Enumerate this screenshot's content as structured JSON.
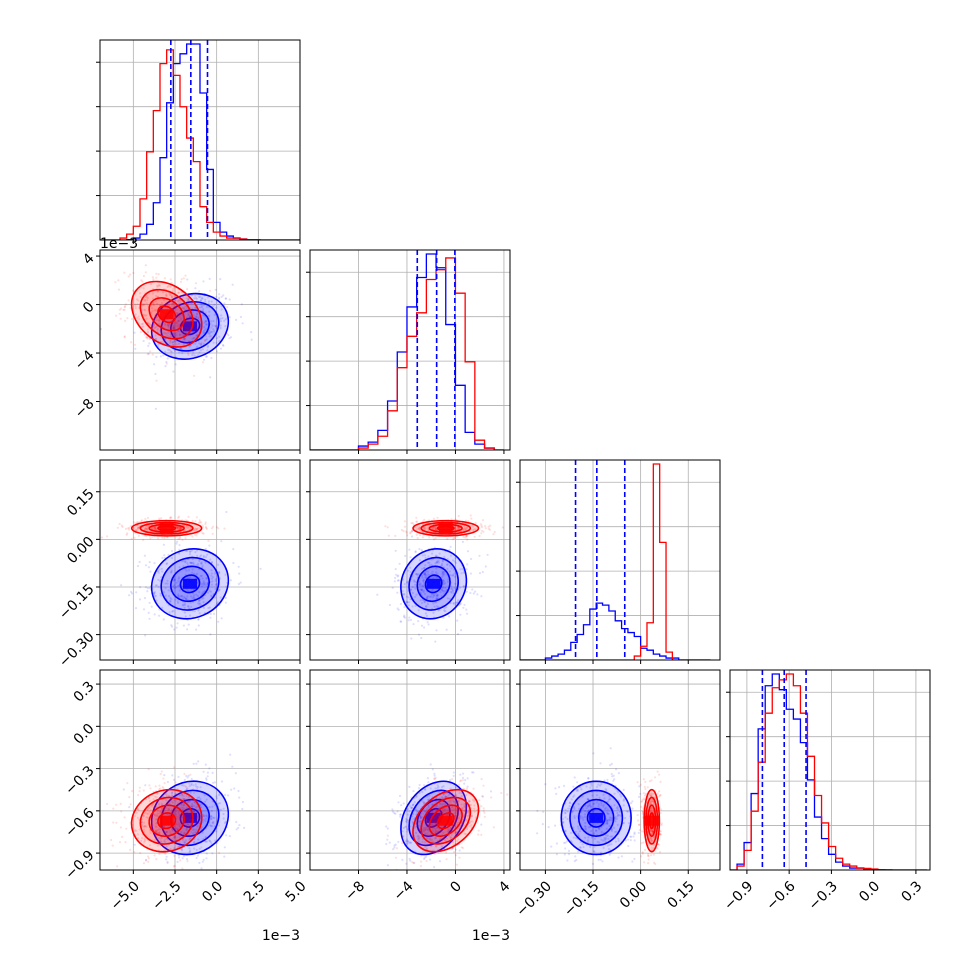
{
  "chart_data": {
    "type": "corner",
    "n_params": 4,
    "grid": true,
    "series": [
      {
        "name": "",
        "color": "#0000ff"
      },
      {
        "name": "",
        "color": "#ff0000"
      }
    ],
    "params": [
      {
        "range": [
          -7.0,
          5.0
        ],
        "ticks": [
          -5.0,
          -2.5,
          0.0,
          2.5,
          5.0
        ],
        "tick_labels": [
          "−5.0",
          "−2.5",
          "0.0",
          "2.5",
          "5.0"
        ],
        "offset": "1e−3"
      },
      {
        "range": [
          -12.0,
          4.5
        ],
        "ticks": [
          -8,
          -4,
          0,
          4
        ],
        "tick_labels": [
          "−8",
          "−4",
          "0",
          "4"
        ],
        "offset": "1e−3"
      },
      {
        "range": [
          -0.38,
          0.25
        ],
        "ticks": [
          -0.3,
          -0.15,
          0.0,
          0.15
        ],
        "tick_labels": [
          "−0.30",
          "−0.15",
          "0.00",
          "0.15"
        ],
        "offset": ""
      },
      {
        "range": [
          -1.02,
          0.4
        ],
        "ticks": [
          -0.9,
          -0.6,
          -0.3,
          0.0,
          0.3
        ],
        "tick_labels": [
          "−0.9",
          "−0.6",
          "−0.3",
          "0.0",
          "0.3"
        ],
        "offset": ""
      }
    ],
    "quantiles": [
      [
        -2.75,
        -1.55,
        -0.55
      ],
      [
        -3.15,
        -1.55,
        -0.05
      ],
      [
        -0.205,
        -0.138,
        -0.05
      ],
      [
        -0.79,
        -0.635,
        -0.48
      ]
    ],
    "histograms": [
      {
        "edges": [
          -7.0,
          -6.6,
          -6.2,
          -5.8,
          -5.4,
          -5.0,
          -4.6,
          -4.2,
          -3.8,
          -3.4,
          -3.0,
          -2.6,
          -2.2,
          -1.8,
          -1.4,
          -1.0,
          -0.6,
          -0.2,
          0.2,
          0.6,
          1.0,
          1.4,
          1.8,
          2.2,
          2.6,
          3.0,
          3.4,
          3.8,
          4.2,
          4.6,
          5.0
        ],
        "blue": [
          0,
          0,
          0,
          0,
          0.002,
          0.01,
          0.03,
          0.08,
          0.19,
          0.42,
          0.7,
          0.9,
          0.95,
          1.0,
          1.0,
          0.75,
          0.36,
          0.09,
          0.04,
          0.02,
          0.01,
          0.005,
          0.002,
          0,
          0,
          0,
          0,
          0,
          0,
          0
        ],
        "red": [
          0,
          0,
          0,
          0.01,
          0.03,
          0.07,
          0.21,
          0.45,
          0.66,
          0.9,
          0.97,
          0.84,
          0.68,
          0.52,
          0.4,
          0.17,
          0.09,
          0.04,
          0.02,
          0.01,
          0.01,
          0.005,
          0.002,
          0.002,
          0,
          0,
          0,
          0,
          0,
          0
        ]
      },
      {
        "edges": [
          -12.0,
          -11.2,
          -10.4,
          -9.6,
          -8.8,
          -8.0,
          -7.2,
          -6.4,
          -5.6,
          -4.8,
          -4.0,
          -3.2,
          -2.4,
          -1.6,
          -0.8,
          0.0,
          0.8,
          1.6,
          2.4,
          3.2,
          4.0
        ],
        "blue": [
          0,
          0,
          0,
          0,
          0.0,
          0.02,
          0.04,
          0.1,
          0.25,
          0.5,
          0.73,
          0.88,
          1.0,
          0.93,
          0.64,
          0.33,
          0.09,
          0.03,
          0.01,
          0
        ],
        "red": [
          0,
          0,
          0,
          0,
          0.0,
          0.01,
          0.03,
          0.07,
          0.2,
          0.42,
          0.58,
          0.7,
          0.87,
          0.92,
          0.98,
          0.8,
          0.45,
          0.05,
          0.01,
          0
        ]
      },
      {
        "edges": [
          -0.38,
          -0.36,
          -0.34,
          -0.32,
          -0.3,
          -0.28,
          -0.26,
          -0.24,
          -0.22,
          -0.2,
          -0.18,
          -0.16,
          -0.14,
          -0.12,
          -0.1,
          -0.08,
          -0.06,
          -0.04,
          -0.02,
          0.0,
          0.02,
          0.04,
          0.06,
          0.08,
          0.1,
          0.12,
          0.14,
          0.16,
          0.18,
          0.2,
          0.22
        ],
        "blue": [
          0,
          0,
          0,
          0,
          0.01,
          0.02,
          0.03,
          0.05,
          0.09,
          0.13,
          0.18,
          0.26,
          0.29,
          0.28,
          0.25,
          0.2,
          0.16,
          0.14,
          0.12,
          0.06,
          0.05,
          0.03,
          0.02,
          0.01,
          0.01,
          0.0,
          0,
          0,
          0,
          0
        ],
        "red": [
          0,
          0,
          0,
          0,
          0,
          0,
          0,
          0,
          0,
          0,
          0,
          0,
          0,
          0,
          0,
          0,
          0,
          0,
          0.02,
          0.07,
          0.19,
          1.0,
          0.6,
          0.04,
          0.0,
          0,
          0,
          0,
          0,
          0
        ]
      },
      {
        "edges": [
          -1.02,
          -0.97,
          -0.92,
          -0.87,
          -0.82,
          -0.77,
          -0.72,
          -0.67,
          -0.62,
          -0.57,
          -0.52,
          -0.47,
          -0.42,
          -0.37,
          -0.32,
          -0.27,
          -0.22,
          -0.17,
          -0.12,
          -0.07,
          -0.02,
          0.03,
          0.08,
          0.13,
          0.18,
          0.23,
          0.28,
          0.33,
          0.38
        ],
        "blue": [
          0,
          0.03,
          0.14,
          0.39,
          0.72,
          0.94,
          1.0,
          0.92,
          0.82,
          0.77,
          0.65,
          0.46,
          0.27,
          0.16,
          0.08,
          0.04,
          0.02,
          0.01,
          0.01,
          0.005,
          0.002,
          0,
          0,
          0,
          0,
          0,
          0,
          0
        ],
        "red": [
          0,
          0.02,
          0.1,
          0.3,
          0.55,
          0.8,
          0.93,
          0.97,
          1.0,
          0.94,
          0.8,
          0.58,
          0.38,
          0.24,
          0.12,
          0.06,
          0.03,
          0.02,
          0.01,
          0.008,
          0.005,
          0.002,
          0.001,
          0,
          0,
          0,
          0,
          0
        ]
      }
    ],
    "gaussians_2d": {
      "blue": {
        "mean": [
          -1.6,
          -1.8,
          -0.14,
          -0.65
        ],
        "sd": [
          1.15,
          1.35,
          0.055,
          0.13
        ]
      },
      "red": {
        "mean": [
          -3.0,
          -0.8,
          0.035,
          -0.67
        ],
        "sd": [
          1.05,
          1.35,
          0.012,
          0.11
        ]
      }
    },
    "correlations": {
      "blue": {
        "1-0": 0.15,
        "2-0": 0.1,
        "2-1": 0.1,
        "3-0": 0.1,
        "3-1": 0.3,
        "3-2": 0.0
      },
      "red": {
        "1-0": -0.3,
        "2-0": 0.0,
        "2-1": 0.0,
        "3-0": 0.1,
        "3-1": 0.35,
        "3-2": 0.0
      }
    },
    "contour_levels_sigma": [
      0.5,
      1.0,
      1.5,
      2.0
    ]
  }
}
